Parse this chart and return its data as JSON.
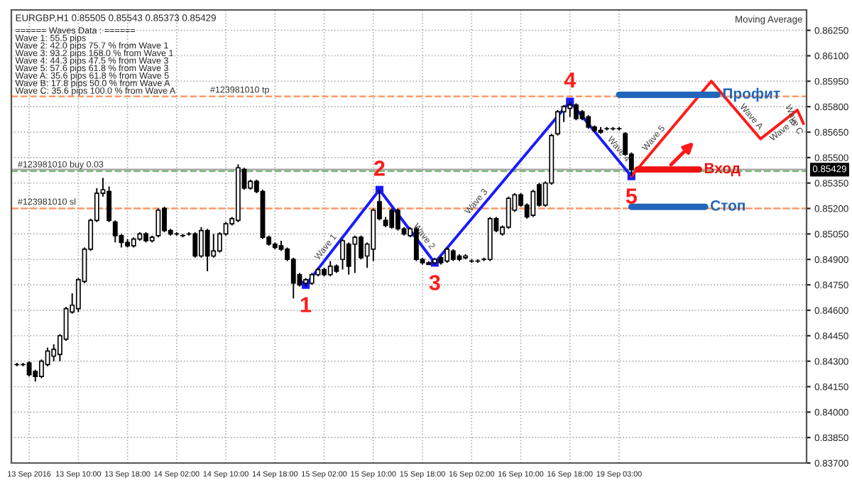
{
  "chart_data": {
    "type": "candlestick",
    "title": "EURGBP,H1 0.85505 0.85543 0.85373 0.85429",
    "categories": [
      null,
      null,
      "13 Sep 2016",
      null,
      null,
      null,
      null,
      null,
      null,
      null,
      "13 Sep 10:00",
      null,
      null,
      null,
      null,
      null,
      null,
      null,
      "13 Sep 18:00",
      null,
      null,
      null,
      null,
      null,
      null,
      null,
      "14 Sep 02:00",
      null,
      null,
      null,
      null,
      null,
      null,
      null,
      "14 Sep 10:00",
      null,
      null,
      null,
      null,
      null,
      null,
      null,
      "14 Sep 18:00",
      null,
      null,
      null,
      null,
      null,
      null,
      null,
      "15 Sep 02:00",
      null,
      null,
      null,
      null,
      null,
      null,
      null,
      "15 Sep 10:00",
      null,
      null,
      null,
      null,
      null,
      null,
      null,
      "15 Sep 18:00",
      null,
      null,
      null,
      null,
      null,
      null,
      null,
      "16 Sep 02:00",
      null,
      null,
      null,
      null,
      null,
      null,
      null,
      "16 Sep 10:00",
      null,
      null,
      null,
      null,
      null,
      null,
      null,
      "16 Sep 18:00",
      null,
      null,
      null,
      null,
      null,
      null,
      null,
      "19 Sep 03:00",
      null,
      null,
      null,
      null,
      null,
      null,
      null,
      null,
      null,
      null,
      null,
      null,
      null,
      null,
      null,
      null,
      null,
      null,
      null,
      null,
      null,
      null,
      null,
      null,
      null,
      null,
      null,
      null,
      null,
      null
    ],
    "ohlc": [
      [
        0.8428,
        0.8429,
        0.8427,
        0.8428
      ],
      [
        0.8428,
        0.8429,
        0.8427,
        0.8428
      ],
      [
        0.8429,
        0.843,
        0.8421,
        0.8422
      ],
      [
        0.8424,
        0.8425,
        0.8418,
        0.8421
      ],
      [
        0.8421,
        0.8431,
        0.842,
        0.843
      ],
      [
        0.8428,
        0.8438,
        0.8427,
        0.8436
      ],
      [
        0.8433,
        0.844,
        0.843,
        0.8437
      ],
      [
        0.8434,
        0.8446,
        0.843,
        0.8445
      ],
      [
        0.8443,
        0.8462,
        0.8442,
        0.8461
      ],
      [
        0.8459,
        0.847,
        0.8458,
        0.8463
      ],
      [
        0.8461,
        0.8479,
        0.8459,
        0.8478
      ],
      [
        0.8477,
        0.8497,
        0.8476,
        0.8496
      ],
      [
        0.8496,
        0.8514,
        0.8495,
        0.8513
      ],
      [
        0.8513,
        0.8532,
        0.8512,
        0.8529
      ],
      [
        0.8529,
        0.8538,
        0.8527,
        0.8531
      ],
      [
        0.853,
        0.8533,
        0.8512,
        0.8513
      ],
      [
        0.8512,
        0.8513,
        0.85,
        0.8504
      ],
      [
        0.8504,
        0.8505,
        0.8497,
        0.85
      ],
      [
        0.85,
        0.8502,
        0.8497,
        0.8498
      ],
      [
        0.8498,
        0.8503,
        0.8497,
        0.8502
      ],
      [
        0.8502,
        0.8506,
        0.8501,
        0.8505
      ],
      [
        0.8505,
        0.8506,
        0.85,
        0.8501
      ],
      [
        0.8501,
        0.8504,
        0.85,
        0.8503
      ],
      [
        0.8504,
        0.852,
        0.8503,
        0.8519
      ],
      [
        0.852,
        0.8521,
        0.8506,
        0.8507
      ],
      [
        0.8507,
        0.8508,
        0.8504,
        0.8505
      ],
      [
        0.8505,
        0.8506,
        0.8504,
        0.8505
      ],
      [
        0.8504,
        0.8505,
        0.8503,
        0.8504
      ],
      [
        0.8505,
        0.8506,
        0.8504,
        0.8505
      ],
      [
        0.8505,
        0.8506,
        0.8491,
        0.8492
      ],
      [
        0.8492,
        0.8509,
        0.8491,
        0.8507
      ],
      [
        0.8507,
        0.8508,
        0.8483,
        0.8492
      ],
      [
        0.8492,
        0.8505,
        0.8491,
        0.8495
      ],
      [
        0.8495,
        0.8506,
        0.8494,
        0.8505
      ],
      [
        0.8505,
        0.8512,
        0.8504,
        0.8511
      ],
      [
        0.8511,
        0.8515,
        0.851,
        0.8514
      ],
      [
        0.8513,
        0.8546,
        0.8512,
        0.8544
      ],
      [
        0.8543,
        0.8544,
        0.8531,
        0.8532
      ],
      [
        0.8532,
        0.8537,
        0.8531,
        0.8536
      ],
      [
        0.8536,
        0.8537,
        0.8529,
        0.853
      ],
      [
        0.853,
        0.8531,
        0.8502,
        0.8503
      ],
      [
        0.8503,
        0.8504,
        0.8498,
        0.8499
      ],
      [
        0.8499,
        0.85,
        0.8496,
        0.8497
      ],
      [
        0.8498,
        0.8501,
        0.8495,
        0.8496
      ],
      [
        0.8496,
        0.8497,
        0.8489,
        0.849
      ],
      [
        0.849,
        0.8491,
        0.8467,
        0.8476
      ],
      [
        0.8481,
        0.8482,
        0.8474,
        0.8475
      ],
      [
        0.8476,
        0.8479,
        0.8474,
        0.8478
      ],
      [
        0.8476,
        0.8482,
        0.8475,
        0.8481
      ],
      [
        0.8481,
        0.8485,
        0.848,
        0.8484
      ],
      [
        0.8484,
        0.8485,
        0.848,
        0.8481
      ],
      [
        0.8481,
        0.8489,
        0.848,
        0.8486
      ],
      [
        0.8486,
        0.8487,
        0.8482,
        0.8483
      ],
      [
        0.849,
        0.8502,
        0.8484,
        0.8501
      ],
      [
        0.8499,
        0.85,
        0.8481,
        0.8486
      ],
      [
        0.8499,
        0.8504,
        0.8482,
        0.8503
      ],
      [
        0.8503,
        0.8504,
        0.849,
        0.8491
      ],
      [
        0.8492,
        0.85,
        0.8485,
        0.8499
      ],
      [
        0.8496,
        0.852,
        0.8489,
        0.8519
      ],
      [
        0.8524,
        0.8531,
        0.8513,
        0.8514
      ],
      [
        0.8513,
        0.8515,
        0.8509,
        0.851
      ],
      [
        0.8519,
        0.852,
        0.8508,
        0.8509
      ],
      [
        0.8519,
        0.852,
        0.8507,
        0.8508
      ],
      [
        0.8508,
        0.8509,
        0.8504,
        0.8505
      ],
      [
        0.8504,
        0.8509,
        0.8503,
        0.8508
      ],
      [
        0.8508,
        0.8509,
        0.8489,
        0.849
      ],
      [
        0.849,
        0.8491,
        0.8487,
        0.8488
      ],
      [
        0.8488,
        0.8489,
        0.8487,
        0.8487
      ],
      [
        0.8488,
        0.8491,
        0.8487,
        0.849
      ],
      [
        0.8491,
        0.8492,
        0.8487,
        0.8488
      ],
      [
        0.8489,
        0.8497,
        0.8488,
        0.8496
      ],
      [
        0.8495,
        0.8496,
        0.8489,
        0.849
      ],
      [
        0.8492,
        0.8493,
        0.8489,
        0.849
      ],
      [
        0.8491,
        0.8493,
        0.849,
        0.8492
      ],
      [
        0.8489,
        0.849,
        0.8488,
        0.8489
      ],
      [
        0.8489,
        0.849,
        0.8488,
        0.8489
      ],
      [
        0.849,
        0.8491,
        0.8489,
        0.849
      ],
      [
        0.849,
        0.8515,
        0.8489,
        0.8514
      ],
      [
        0.8514,
        0.8515,
        0.8506,
        0.8507
      ],
      [
        0.8505,
        0.851,
        0.8504,
        0.8509
      ],
      [
        0.8509,
        0.8527,
        0.8508,
        0.8526
      ],
      [
        0.8519,
        0.8529,
        0.8518,
        0.8528
      ],
      [
        0.8528,
        0.8529,
        0.8521,
        0.8522
      ],
      [
        0.8522,
        0.8523,
        0.8514,
        0.8515
      ],
      [
        0.8516,
        0.8531,
        0.8515,
        0.853
      ],
      [
        0.8534,
        0.8535,
        0.8521,
        0.8522
      ],
      [
        0.8522,
        0.8536,
        0.8521,
        0.8535
      ],
      [
        0.8535,
        0.8564,
        0.8534,
        0.8563
      ],
      [
        0.8564,
        0.8578,
        0.8563,
        0.8577
      ],
      [
        0.8577,
        0.8581,
        0.8571,
        0.858
      ],
      [
        0.8579,
        0.8583,
        0.8574,
        0.8581
      ],
      [
        0.8581,
        0.8582,
        0.8572,
        0.8573
      ],
      [
        0.8577,
        0.8578,
        0.8572,
        0.8573
      ],
      [
        0.8574,
        0.8575,
        0.8567,
        0.8568
      ],
      [
        0.8568,
        0.8569,
        0.8565,
        0.8566
      ],
      [
        0.8566,
        0.8568,
        0.8564,
        0.8565
      ],
      [
        0.8567,
        0.8568,
        0.8566,
        0.8567
      ],
      [
        0.8567,
        0.8568,
        0.8566,
        0.8567
      ],
      [
        0.8567,
        0.8568,
        0.8566,
        0.8567
      ],
      [
        0.8564,
        0.8565,
        0.8551,
        0.8552
      ],
      [
        0.8552,
        0.8553,
        0.8539,
        0.8543
      ],
      null,
      null,
      null,
      null,
      null,
      null,
      null,
      null,
      null,
      null,
      null,
      null,
      null,
      null,
      null,
      null,
      null,
      null,
      null,
      null,
      null,
      null,
      null,
      null,
      null,
      null,
      null,
      null
    ],
    "series": [
      {
        "type": "line",
        "color": "#1a1aff",
        "marker": "square",
        "values": [
          null,
          null,
          null,
          null,
          null,
          null,
          null,
          null,
          null,
          null,
          null,
          null,
          null,
          null,
          null,
          null,
          null,
          null,
          null,
          null,
          null,
          null,
          null,
          null,
          null,
          null,
          null,
          null,
          null,
          null,
          null,
          null,
          null,
          null,
          null,
          null,
          null,
          null,
          null,
          null,
          null,
          null,
          null,
          null,
          null,
          null,
          null,
          0.8475,
          null,
          null,
          null,
          null,
          null,
          null,
          null,
          null,
          null,
          null,
          null,
          0.8531,
          null,
          null,
          null,
          null,
          null,
          null,
          null,
          null,
          0.8488,
          null,
          null,
          null,
          null,
          null,
          null,
          null,
          null,
          null,
          null,
          null,
          null,
          null,
          null,
          null,
          null,
          null,
          null,
          null,
          null,
          null,
          0.8583,
          null,
          null,
          null,
          null,
          null,
          null,
          null,
          null,
          null,
          0.8539,
          null,
          null,
          null,
          null,
          null,
          null,
          null,
          null,
          null,
          null,
          null,
          null,
          null,
          null,
          null,
          null,
          null,
          null,
          null,
          null,
          null,
          null,
          null,
          null,
          null,
          null,
          null,
          null
        ]
      },
      {
        "type": "line",
        "color": "#ff1a1a",
        "marker": "none",
        "values": [
          null,
          null,
          null,
          null,
          null,
          null,
          null,
          null,
          null,
          null,
          null,
          null,
          null,
          null,
          null,
          null,
          null,
          null,
          null,
          null,
          null,
          null,
          null,
          null,
          null,
          null,
          null,
          null,
          null,
          null,
          null,
          null,
          null,
          null,
          null,
          null,
          null,
          null,
          null,
          null,
          null,
          null,
          null,
          null,
          null,
          null,
          null,
          null,
          null,
          null,
          null,
          null,
          null,
          null,
          null,
          null,
          null,
          null,
          null,
          null,
          null,
          null,
          null,
          null,
          null,
          null,
          null,
          null,
          null,
          null,
          null,
          null,
          null,
          null,
          null,
          null,
          null,
          null,
          null,
          null,
          null,
          null,
          null,
          null,
          null,
          null,
          null,
          null,
          null,
          null,
          null,
          null,
          null,
          null,
          null,
          null,
          null,
          null,
          null,
          null,
          0.8539,
          null,
          null,
          null,
          null,
          null,
          null,
          null,
          null,
          null,
          null,
          null,
          null,
          0.8595,
          null,
          null,
          null,
          null,
          null,
          null,
          null,
          0.8561,
          null,
          null,
          null,
          null,
          null,
          0.8578,
          0.857
        ]
      },
      {
        "type": "line",
        "name": "Профит",
        "color": "#2266bb",
        "marker": "none",
        "values": [
          null,
          null,
          null,
          null,
          null,
          null,
          null,
          null,
          null,
          null,
          null,
          null,
          null,
          null,
          null,
          null,
          null,
          null,
          null,
          null,
          null,
          null,
          null,
          null,
          null,
          null,
          null,
          null,
          null,
          null,
          null,
          null,
          null,
          null,
          null,
          null,
          null,
          null,
          null,
          null,
          null,
          null,
          null,
          null,
          null,
          null,
          null,
          null,
          null,
          null,
          null,
          null,
          null,
          null,
          null,
          null,
          null,
          null,
          null,
          null,
          null,
          null,
          null,
          null,
          null,
          null,
          null,
          null,
          null,
          null,
          null,
          null,
          null,
          null,
          null,
          null,
          null,
          null,
          null,
          null,
          null,
          null,
          null,
          null,
          null,
          null,
          null,
          null,
          null,
          null,
          null,
          null,
          null,
          null,
          null,
          null,
          null,
          null,
          0.8587,
          0.8587,
          0.8587,
          0.8587,
          0.8587,
          0.8587,
          0.8587,
          0.8587,
          0.8587,
          0.8587,
          0.8587,
          0.8587,
          0.8587,
          0.8587,
          0.8587,
          0.8587,
          0.8587,
          null,
          null,
          null,
          null,
          null,
          null,
          null,
          null,
          null,
          null,
          null,
          null,
          null,
          null
        ]
      },
      {
        "type": "line",
        "name": "Вход",
        "color": "#ee1111",
        "marker": "none",
        "values": [
          null,
          null,
          null,
          null,
          null,
          null,
          null,
          null,
          null,
          null,
          null,
          null,
          null,
          null,
          null,
          null,
          null,
          null,
          null,
          null,
          null,
          null,
          null,
          null,
          null,
          null,
          null,
          null,
          null,
          null,
          null,
          null,
          null,
          null,
          null,
          null,
          null,
          null,
          null,
          null,
          null,
          null,
          null,
          null,
          null,
          null,
          null,
          null,
          null,
          null,
          null,
          null,
          null,
          null,
          null,
          null,
          null,
          null,
          null,
          null,
          null,
          null,
          null,
          null,
          null,
          null,
          null,
          null,
          null,
          null,
          null,
          null,
          null,
          null,
          null,
          null,
          null,
          null,
          null,
          null,
          null,
          null,
          null,
          null,
          null,
          null,
          null,
          null,
          null,
          null,
          null,
          null,
          null,
          null,
          null,
          null,
          null,
          null,
          null,
          null,
          null,
          0.8543,
          0.8543,
          0.8543,
          0.8543,
          0.8543,
          0.8543,
          0.8543,
          0.8543,
          0.8543,
          0.8543,
          0.8543,
          null,
          null,
          null,
          null,
          null,
          null,
          null,
          null,
          null,
          null,
          null,
          null,
          null,
          null,
          null,
          null,
          null
        ]
      },
      {
        "type": "line",
        "name": "Стоп",
        "color": "#2266bb",
        "marker": "none",
        "values": [
          null,
          null,
          null,
          null,
          null,
          null,
          null,
          null,
          null,
          null,
          null,
          null,
          null,
          null,
          null,
          null,
          null,
          null,
          null,
          null,
          null,
          null,
          null,
          null,
          null,
          null,
          null,
          null,
          null,
          null,
          null,
          null,
          null,
          null,
          null,
          null,
          null,
          null,
          null,
          null,
          null,
          null,
          null,
          null,
          null,
          null,
          null,
          null,
          null,
          null,
          null,
          null,
          null,
          null,
          null,
          null,
          null,
          null,
          null,
          null,
          null,
          null,
          null,
          null,
          null,
          null,
          null,
          null,
          null,
          null,
          null,
          null,
          null,
          null,
          null,
          null,
          null,
          null,
          null,
          null,
          null,
          null,
          null,
          null,
          null,
          null,
          null,
          null,
          null,
          null,
          null,
          null,
          null,
          null,
          null,
          null,
          null,
          null,
          null,
          null,
          0.8521,
          0.8521,
          0.8521,
          0.8521,
          0.8521,
          0.8521,
          0.8521,
          0.8521,
          0.8521,
          0.8521,
          0.8521,
          0.8521,
          0.8521,
          null,
          null,
          null,
          null,
          null,
          null,
          null,
          null,
          null,
          null,
          null,
          null,
          null,
          null,
          null,
          null
        ]
      }
    ],
    "ref_lines": [
      {
        "axis": "y",
        "value": 0.8586,
        "label": "#123981010 tp",
        "color": "#ff9966",
        "line_style": "dashed"
      },
      {
        "axis": "y",
        "value": 0.8542,
        "label": "#123981010 buy 0.03",
        "color": "#77bb77",
        "line_style": "dashed"
      },
      {
        "axis": "y",
        "value": 0.852,
        "label": "#123981010 sl",
        "color": "#ff9966",
        "line_style": "dashed"
      },
      {
        "axis": "y",
        "value": 0.85429,
        "label": "0.85429",
        "color": "#aaaaaa",
        "line_style": "solid"
      }
    ],
    "annotations": [
      "Moving Average",
      "====== Waves Data : ======",
      "Wave 1: 55.5 pips",
      "Wave 2: 42.0 pips 75.7 % from Wave 1",
      "Wave 3: 93.2 pips 168.0 % from Wave 1",
      "Wave 4: 44.3 pips 47.5 % from Wave 3",
      "Wave 5: 57.6 pips 61.8 % from Wave 3",
      "Wave A: 35.6 pips 61.8 % from Wave 5",
      "Wave B: 17.8 pips 50.0 % from Wave A",
      "Wave C: 35.6 pips 100.0 % from Wave A",
      "1",
      "2",
      "3",
      "4",
      "5",
      "Wave 1",
      "Wave 2",
      "Wave 3",
      "Wave 4",
      "Wave 5",
      "Wave A",
      "Wave B",
      "Wave C"
    ],
    "ylim": [
      0.837,
      0.8637
    ],
    "yticks": [
      {
        "value": 0.837,
        "label": "0.83700"
      },
      {
        "value": 0.8385,
        "label": "0.83850"
      },
      {
        "value": 0.84,
        "label": "0.84000"
      },
      {
        "value": 0.8415,
        "label": "0.84150"
      },
      {
        "value": 0.843,
        "label": "0.84300"
      },
      {
        "value": 0.8445,
        "label": "0.84450"
      },
      {
        "value": 0.846,
        "label": "0.84600"
      },
      {
        "value": 0.8475,
        "label": "0.84750"
      },
      {
        "value": 0.849,
        "label": "0.84900"
      },
      {
        "value": 0.8505,
        "label": "0.85050"
      },
      {
        "value": 0.852,
        "label": "0.85200"
      },
      {
        "value": 0.8535,
        "label": "0.85350"
      },
      {
        "value": 0.855,
        "label": "0.85500"
      },
      {
        "value": 0.8565,
        "label": "0.85650"
      },
      {
        "value": 0.858,
        "label": "0.85800"
      },
      {
        "value": 0.8595,
        "label": "0.85950"
      },
      {
        "value": 0.861,
        "label": "0.86100"
      },
      {
        "value": 0.8625,
        "label": "0.86250"
      }
    ],
    "grid": true
  }
}
